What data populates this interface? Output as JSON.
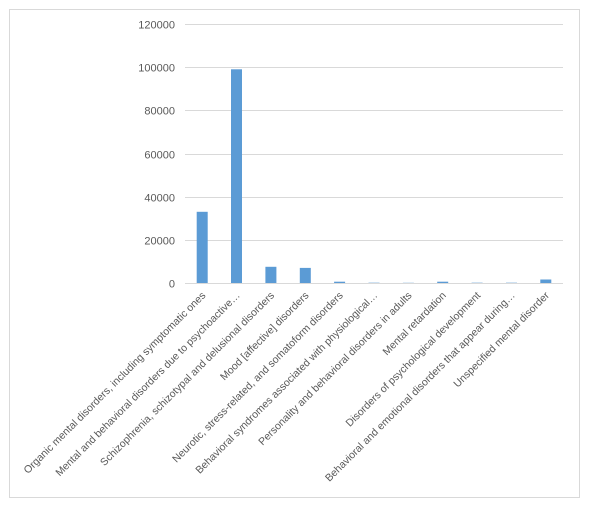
{
  "chart_data": {
    "type": "bar",
    "title": "",
    "xlabel": "",
    "ylabel": "",
    "ylim": [
      0,
      120000
    ],
    "y_ticks": [
      "0",
      "20000",
      "40000",
      "60000",
      "80000",
      "100000",
      "120000"
    ],
    "grid": true,
    "legend": "none",
    "categories": [
      "Organic mental disorders, including symptomatic ones",
      "Mental and behavioral disorders due to psychoactive…",
      "Schizophrenia, schizotypal and delusional disorders",
      "Mood [affective] disorders",
      "Neurotic, stress-related, and somatoform disorders",
      "Behavioral syndromes associated with physiological…",
      "Personality and behavioral disorders in adults",
      "Mental retardation",
      "Disorders of psychological development",
      "Behavioral and emotional disorders that appear during…",
      "Unspecified mental disorder"
    ],
    "series": [
      {
        "values": [
          33000,
          99000,
          7500,
          7000,
          600,
          150,
          100,
          600,
          150,
          150,
          1600
        ]
      }
    ],
    "colors": {
      "bar": "#5b9bd5",
      "grid": "#d9d9d9",
      "text": "#595959",
      "frame": "#d9d9d9"
    }
  }
}
